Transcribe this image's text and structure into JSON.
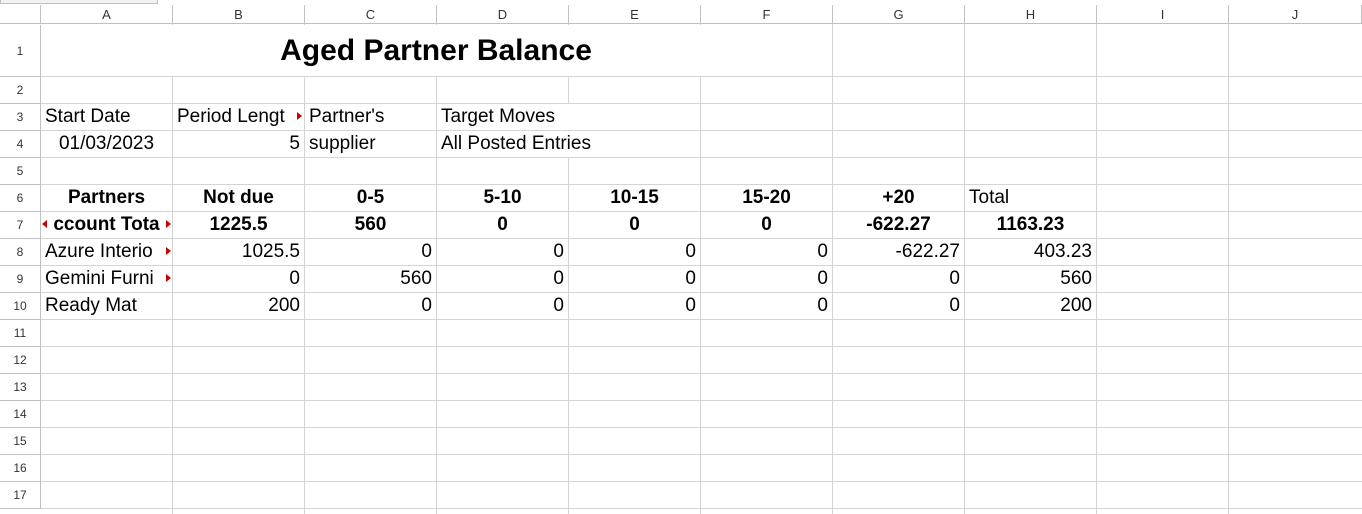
{
  "columns": [
    "A",
    "B",
    "C",
    "D",
    "E",
    "F",
    "G",
    "H",
    "I",
    "J"
  ],
  "rows": [
    "1",
    "2",
    "3",
    "4",
    "5",
    "6",
    "7",
    "8",
    "9",
    "10",
    "11",
    "12",
    "13",
    "14",
    "15",
    "16",
    "17"
  ],
  "title": "Aged Partner Balance",
  "params": {
    "start_date_label": "Start Date",
    "start_date_value": "01/03/2023",
    "period_length_label": "Period Lengt",
    "period_length_value": "5",
    "partners_label": "Partner's",
    "partners_value": "supplier",
    "target_moves_label": "Target Moves",
    "target_moves_value": "All Posted Entries"
  },
  "table": {
    "headers": [
      "Partners",
      "Not due",
      "0-5",
      "5-10",
      "10-15",
      "15-20",
      "+20",
      "Total"
    ],
    "total_row": [
      "ccount Tota",
      "1225.5",
      "560",
      "0",
      "0",
      "0",
      "-622.27",
      "1163.23"
    ],
    "rows": [
      [
        "Azure Interio",
        "1025.5",
        "0",
        "0",
        "0",
        "0",
        "-622.27",
        "403.23"
      ],
      [
        "Gemini Furni",
        "0",
        "560",
        "0",
        "0",
        "0",
        "0",
        "560"
      ],
      [
        "Ready Mat",
        "200",
        "0",
        "0",
        "0",
        "0",
        "0",
        "200"
      ]
    ]
  },
  "colors": {
    "overflow_marker": "#cc0000",
    "grid": "#d4d4d4",
    "header_border": "#c0c0c0"
  }
}
